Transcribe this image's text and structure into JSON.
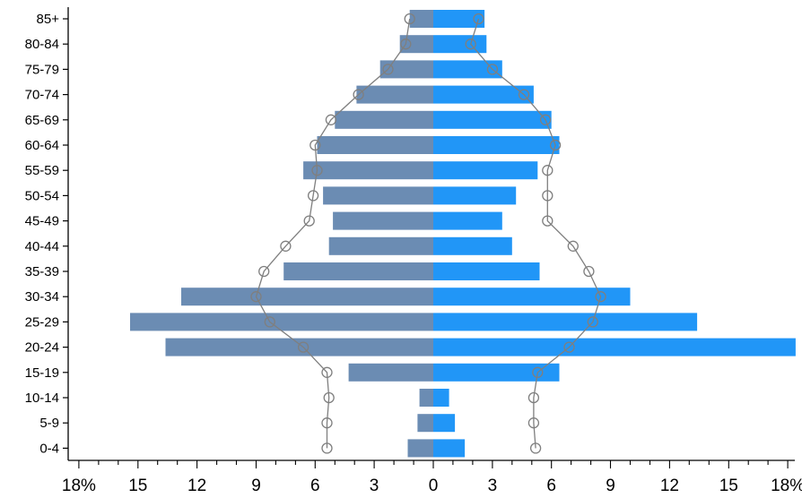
{
  "chart_data": {
    "type": "bar",
    "subtype": "population-pyramid",
    "categories": [
      "0-4",
      "5-9",
      "10-14",
      "15-19",
      "20-24",
      "25-29",
      "30-34",
      "35-39",
      "40-44",
      "45-49",
      "50-54",
      "55-59",
      "60-64",
      "65-69",
      "70-74",
      "75-79",
      "80-84",
      "85+"
    ],
    "series": [
      {
        "side": "left",
        "color": "#6b8cb3",
        "values": [
          1.3,
          0.8,
          0.7,
          4.3,
          13.6,
          15.4,
          12.8,
          7.6,
          5.3,
          5.1,
          5.6,
          6.6,
          5.9,
          5.0,
          3.9,
          2.7,
          1.7,
          1.2
        ]
      },
      {
        "side": "right",
        "color": "#2196f7",
        "values": [
          1.6,
          1.1,
          0.8,
          6.4,
          18.4,
          13.4,
          10.0,
          5.4,
          4.0,
          3.5,
          4.2,
          5.3,
          6.4,
          6.0,
          5.1,
          3.5,
          2.7,
          2.6
        ]
      },
      {
        "side": "left",
        "type": "line",
        "color": "#7f7f7f",
        "values": [
          5.4,
          5.4,
          5.3,
          5.4,
          6.6,
          8.3,
          9.0,
          8.6,
          7.5,
          6.3,
          6.1,
          5.9,
          6.0,
          5.2,
          3.8,
          2.3,
          1.4,
          1.2
        ]
      },
      {
        "side": "right",
        "type": "line",
        "color": "#7f7f7f",
        "values": [
          5.2,
          5.1,
          5.1,
          5.3,
          6.9,
          8.1,
          8.5,
          7.9,
          7.1,
          5.8,
          5.8,
          5.8,
          6.2,
          5.7,
          4.6,
          3.0,
          1.9,
          2.3
        ]
      }
    ],
    "x_ticks": [
      "18%",
      "15",
      "12",
      "9",
      "6",
      "3",
      "0",
      "3",
      "6",
      "9",
      "12",
      "15",
      "18%"
    ],
    "xlim": [
      -18,
      18
    ],
    "xlabel": "",
    "ylabel": "",
    "title": "",
    "grid": false,
    "legend": "none"
  }
}
